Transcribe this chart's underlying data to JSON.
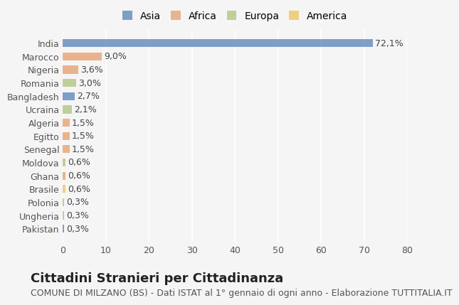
{
  "categories": [
    "India",
    "Marocco",
    "Nigeria",
    "Romania",
    "Bangladesh",
    "Ucraina",
    "Algeria",
    "Egitto",
    "Senegal",
    "Moldova",
    "Ghana",
    "Brasile",
    "Polonia",
    "Ungheria",
    "Pakistan"
  ],
  "values": [
    72.1,
    9.0,
    3.6,
    3.0,
    2.7,
    2.1,
    1.5,
    1.5,
    1.5,
    0.6,
    0.6,
    0.6,
    0.3,
    0.3,
    0.3
  ],
  "labels": [
    "72,1%",
    "9,0%",
    "3,6%",
    "3,0%",
    "2,7%",
    "2,1%",
    "1,5%",
    "1,5%",
    "1,5%",
    "0,6%",
    "0,6%",
    "0,6%",
    "0,3%",
    "0,3%",
    "0,3%"
  ],
  "colors": [
    "#6a8fbf",
    "#e8a87c",
    "#e8a87c",
    "#b5c98a",
    "#6a8fbf",
    "#b5c98a",
    "#e8a87c",
    "#e8a87c",
    "#e8a87c",
    "#b5c98a",
    "#e8a87c",
    "#f0c96a",
    "#b5c98a",
    "#b5c98a",
    "#6a8fbf"
  ],
  "legend_labels": [
    "Asia",
    "Africa",
    "Europa",
    "America"
  ],
  "legend_colors": [
    "#6a8fbf",
    "#e8a87c",
    "#b5c98a",
    "#f0c96a"
  ],
  "title": "Cittadini Stranieri per Cittadinanza",
  "subtitle": "COMUNE DI MILZANO (BS) - Dati ISTAT al 1° gennaio di ogni anno - Elaborazione TUTTITALIA.IT",
  "xlim": [
    0,
    80
  ],
  "xticks": [
    0,
    10,
    20,
    30,
    40,
    50,
    60,
    70,
    80
  ],
  "background_color": "#f5f5f5",
  "grid_color": "#ffffff",
  "bar_height": 0.6,
  "title_fontsize": 13,
  "subtitle_fontsize": 9,
  "tick_fontsize": 9,
  "label_fontsize": 9,
  "legend_fontsize": 10
}
